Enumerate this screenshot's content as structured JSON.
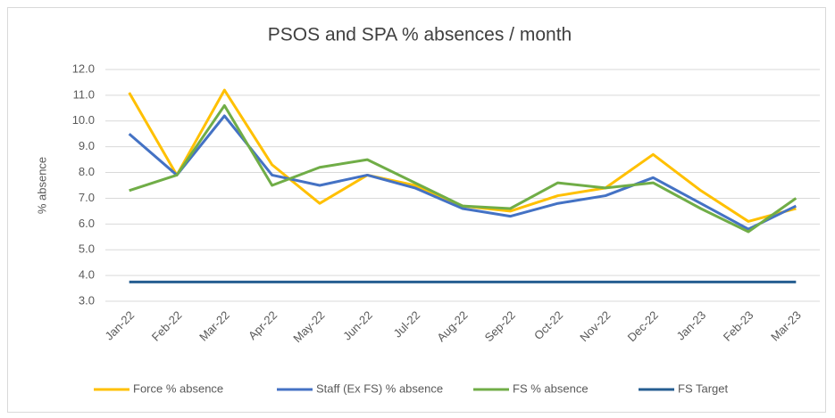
{
  "chart_data": {
    "type": "line",
    "title": "PSOS and SPA % absences / month",
    "y_label": "% absence",
    "categories": [
      "Jan-22",
      "Feb-22",
      "Mar-22",
      "Apr-22",
      "May-22",
      "Jun-22",
      "Jul-22",
      "Aug-22",
      "Sep-22",
      "Oct-22",
      "Nov-22",
      "Dec-22",
      "Jan-23",
      "Feb-23",
      "Mar-23"
    ],
    "series": [
      {
        "name": "Force % absence",
        "color": "#ffc000",
        "values": [
          11.1,
          7.9,
          11.2,
          8.3,
          6.8,
          7.9,
          7.5,
          6.7,
          6.5,
          7.1,
          7.4,
          8.7,
          7.3,
          6.1,
          6.6
        ]
      },
      {
        "name": "Staff (Ex FS) % absence",
        "color": "#4472c4",
        "values": [
          9.5,
          7.9,
          10.2,
          7.9,
          7.5,
          7.9,
          7.4,
          6.6,
          6.3,
          6.8,
          7.1,
          7.8,
          6.8,
          5.8,
          6.7
        ]
      },
      {
        "name": "FS % absence",
        "color": "#70ad47",
        "values": [
          7.3,
          7.9,
          10.6,
          7.5,
          8.2,
          8.5,
          7.6,
          6.7,
          6.6,
          7.6,
          7.4,
          7.6,
          6.6,
          5.7,
          7.0
        ]
      },
      {
        "name": "FS Target",
        "color": "#255e91",
        "values": [
          3.75,
          3.75,
          3.75,
          3.75,
          3.75,
          3.75,
          3.75,
          3.75,
          3.75,
          3.75,
          3.75,
          3.75,
          3.75,
          3.75,
          3.75
        ]
      }
    ],
    "ylim": [
      3,
      12
    ],
    "yticks": [
      {
        "value": 3,
        "label": "3.0"
      },
      {
        "value": 4,
        "label": "4.0"
      },
      {
        "value": 5,
        "label": "5.0"
      },
      {
        "value": 6,
        "label": "6.0"
      },
      {
        "value": 7,
        "label": "7.0"
      },
      {
        "value": 8,
        "label": "8.0"
      },
      {
        "value": 9,
        "label": "9.0"
      },
      {
        "value": 10,
        "label": "10.0"
      },
      {
        "value": 11,
        "label": "11.0"
      },
      {
        "value": 12,
        "label": "12.0"
      }
    ],
    "grid": true,
    "legend": "bottom"
  }
}
